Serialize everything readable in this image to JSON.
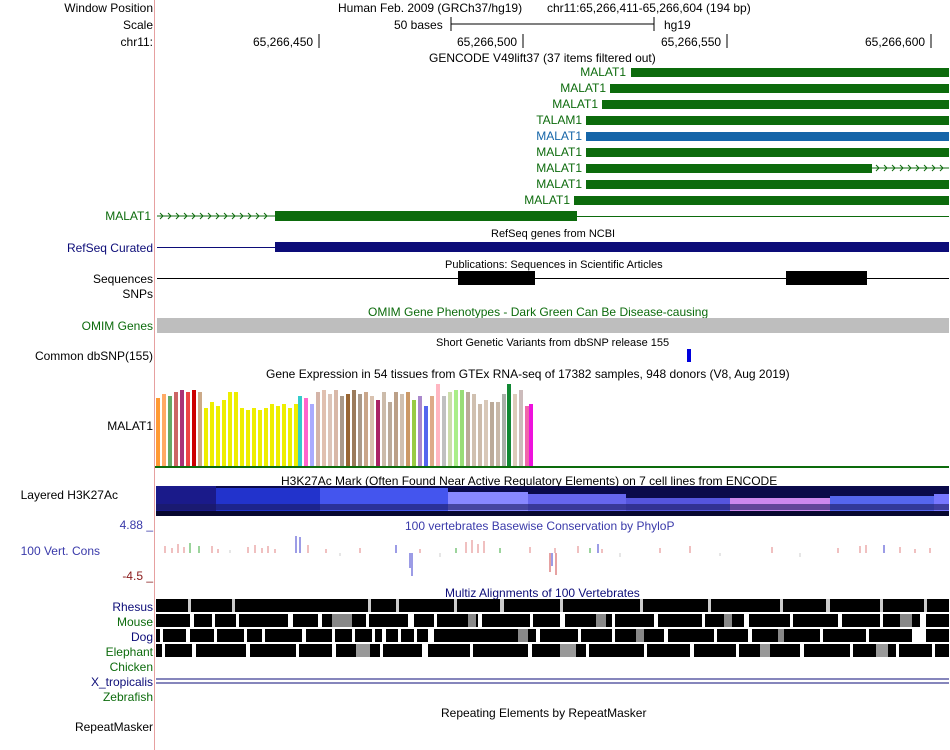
{
  "header": {
    "window_position_label": "Window Position",
    "scale_label": "Scale",
    "chrom_label": "chr11:",
    "assembly": "Human Feb. 2009 (GRCh37/hg19)",
    "position": "chr11:65,266,411-65,266,604 (194 bp)",
    "scale_text": "50 bases",
    "db": "hg19",
    "ticks": [
      "65,266,450",
      "65,266,500",
      "65,266,550",
      "65,266,600"
    ]
  },
  "gencode": {
    "title": "GENCODE V49lift37 (37 items filtered out)",
    "transcripts": [
      "MALAT1",
      "MALAT1",
      "MALAT1",
      "TALAM1",
      "MALAT1",
      "MALAT1",
      "MALAT1",
      "MALAT1",
      "MALAT1",
      "MALAT1"
    ]
  },
  "refseq": {
    "label": "RefSeq Curated",
    "title": "RefSeq genes from NCBI"
  },
  "publications": {
    "label": "Sequences",
    "title": "Publications: Sequences in Scientific Articles"
  },
  "snps": {
    "label": "SNPs"
  },
  "omim": {
    "label": "OMIM Genes",
    "title": "OMIM Gene Phenotypes - Dark Green Can Be Disease-causing"
  },
  "dbsnp": {
    "label": "Common dbSNP(155)",
    "title": "Short Genetic Variants from dbSNP release 155"
  },
  "gtex": {
    "title": "Gene Expression in 54 tissues from GTEx RNA-seq of 17382 samples, 948 donors (V8, Aug 2019)",
    "label": "MALAT1"
  },
  "h3k27ac": {
    "label": "Layered H3K27Ac",
    "title": "H3K27Ac Mark (Often Found Near Active Regulatory Elements) on 7 cell lines from ENCODE"
  },
  "conservation": {
    "label": "100 Vert. Cons",
    "ymax": "4.88 _",
    "ymin": "-4.5 _",
    "title": "100 vertebrates Basewise Conservation by PhyloP"
  },
  "multiz": {
    "title": "Multiz Alignments of 100 Vertebrates",
    "species": [
      "Rhesus",
      "Mouse",
      "Dog",
      "Elephant",
      "Chicken",
      "X_tropicalis",
      "Zebrafish"
    ]
  },
  "repeatmasker": {
    "label": "RepeatMasker",
    "title": "Repeating Elements by RepeatMasker"
  },
  "colors": {
    "green": "#0c6b0c",
    "blue_selected": "#1565a8",
    "navy": "#0c0c78",
    "gray": "#bebebe",
    "divider": "#e6a0a0"
  }
}
